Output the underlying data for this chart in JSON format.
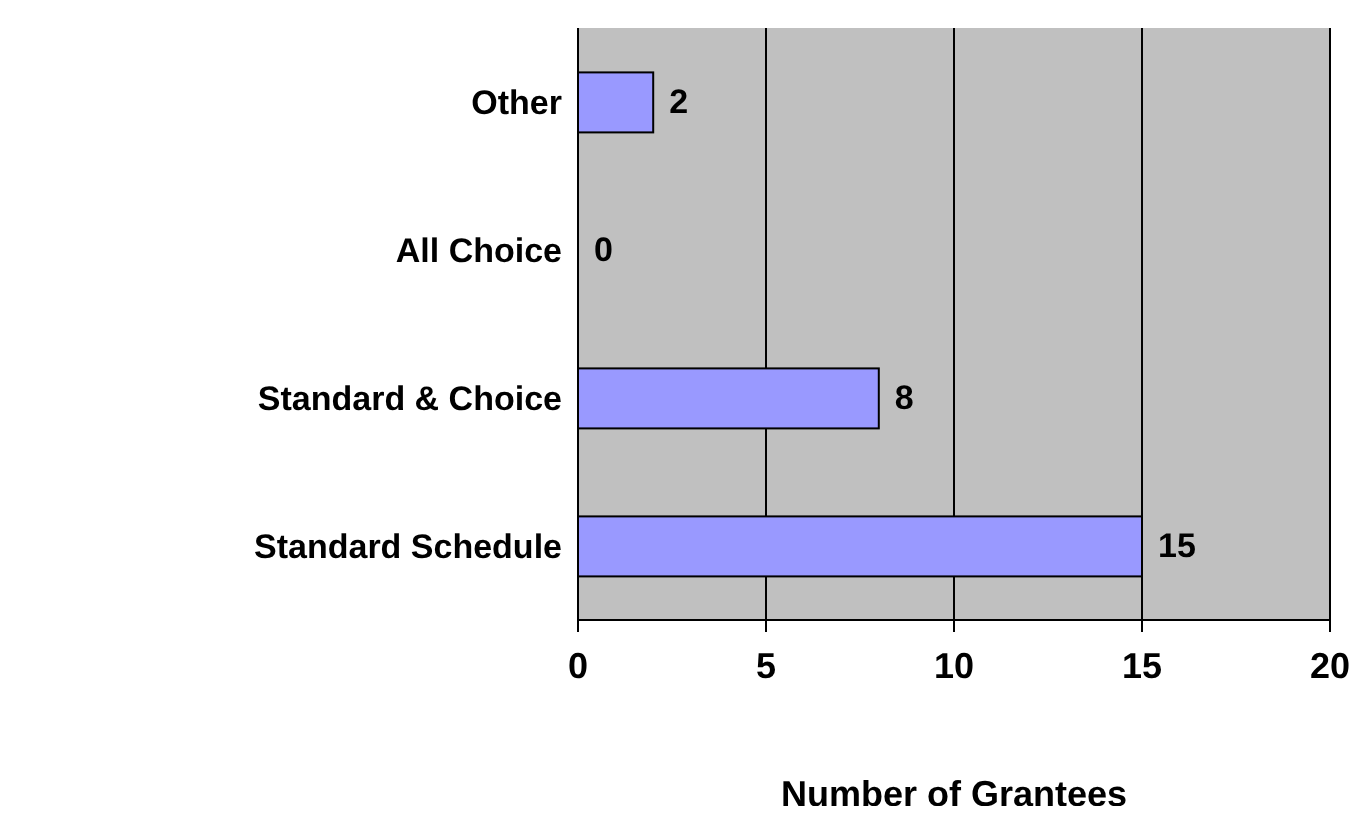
{
  "chart_data": {
    "type": "bar",
    "orientation": "horizontal",
    "categories": [
      "Other",
      "All Choice",
      "Standard & Choice",
      "Standard Schedule"
    ],
    "values": [
      2,
      0,
      8,
      15
    ],
    "color": "#9999ff",
    "xlim": [
      0,
      20
    ],
    "xticks": [
      0,
      5,
      10,
      15,
      20
    ],
    "xlabel": "Number of Grantees",
    "grid": "x",
    "data_labels": true
  }
}
